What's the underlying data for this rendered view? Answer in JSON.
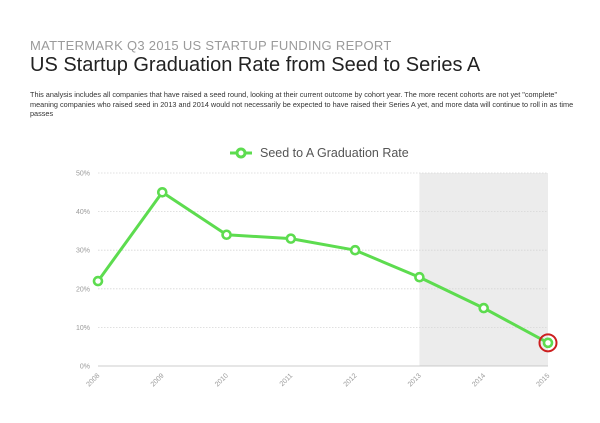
{
  "header": {
    "report_title": "MATTERMARK Q3 2015 US STARTUP FUNDING REPORT",
    "title": "US Startup Graduation Rate from Seed to Series A",
    "description": "This analysis includes all companies that have raised a seed round, looking at their current outcome by cohort year. The more recent cohorts are not yet \"complete\" meaning companies who raised seed in 2013 and 2014 would not necessarily be expected to have raised their Series A yet, and more data will continue to roll in as time passes"
  },
  "colors": {
    "line": "#5ddc4f",
    "highlight_ring": "#cc1f1f",
    "shaded_region": "#ececec",
    "grid": "#d6d6d6"
  },
  "chart_data": {
    "type": "line",
    "title": "",
    "xlabel": "",
    "ylabel": "",
    "categories": [
      "2008",
      "2009",
      "2010",
      "2011",
      "2012",
      "2013",
      "2014",
      "2015"
    ],
    "series": [
      {
        "name": "Seed to A Graduation Rate",
        "values": [
          22,
          45,
          34,
          33,
          30,
          23,
          15,
          6
        ]
      }
    ],
    "ylim": [
      0,
      50
    ],
    "y_ticks": [
      0,
      10,
      20,
      30,
      40,
      50
    ],
    "y_tick_labels": [
      "0%",
      "10%",
      "20%",
      "30%",
      "40%",
      "50%"
    ],
    "shaded_range": [
      "2013",
      "2015"
    ],
    "highlighted_category": "2015",
    "grid": true,
    "legend_position": "top-center"
  }
}
